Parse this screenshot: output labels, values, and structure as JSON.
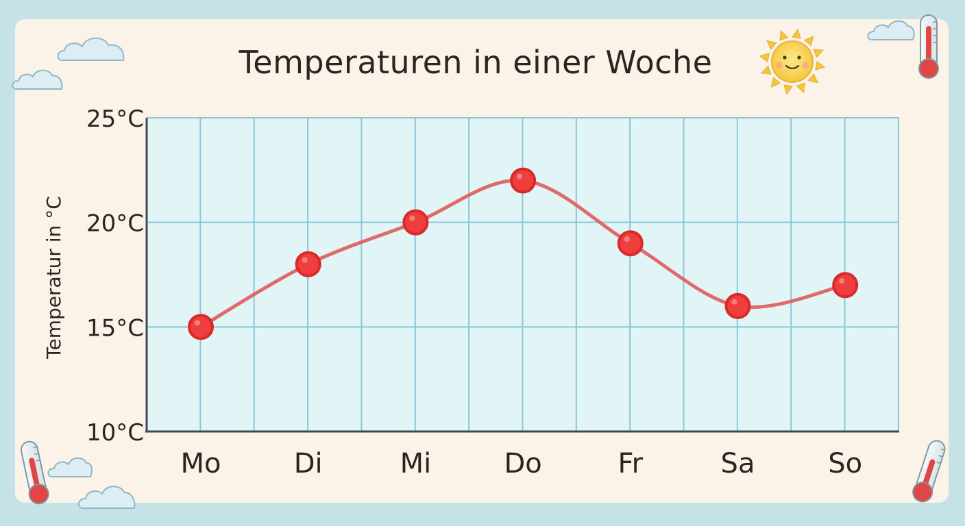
{
  "chart_data": {
    "type": "line",
    "title": "Temperaturen in einer Woche",
    "ylabel": "Temperatur in °C",
    "xlabel": "",
    "categories": [
      "Mo",
      "Di",
      "Mi",
      "Do",
      "Fr",
      "Sa",
      "So"
    ],
    "values": [
      15,
      18,
      20,
      22,
      19,
      16,
      17
    ],
    "ylim": [
      10,
      25
    ],
    "yticks": [
      {
        "value": 10,
        "label": "10°C"
      },
      {
        "value": 15,
        "label": "15°C"
      },
      {
        "value": 20,
        "label": "20°C"
      },
      {
        "value": 25,
        "label": "25°C"
      }
    ],
    "grid": true,
    "smooth": true,
    "colors": {
      "line": "#e05a5a",
      "marker": "#ee3e3e",
      "marker_stroke": "#d92a2a",
      "plot_bg": "#e1f4f6",
      "grid": "#8cc6d4",
      "axis": "#3d4a55"
    }
  },
  "decorations": [
    "cloud-icon",
    "sun-icon",
    "thermometer-icon"
  ]
}
